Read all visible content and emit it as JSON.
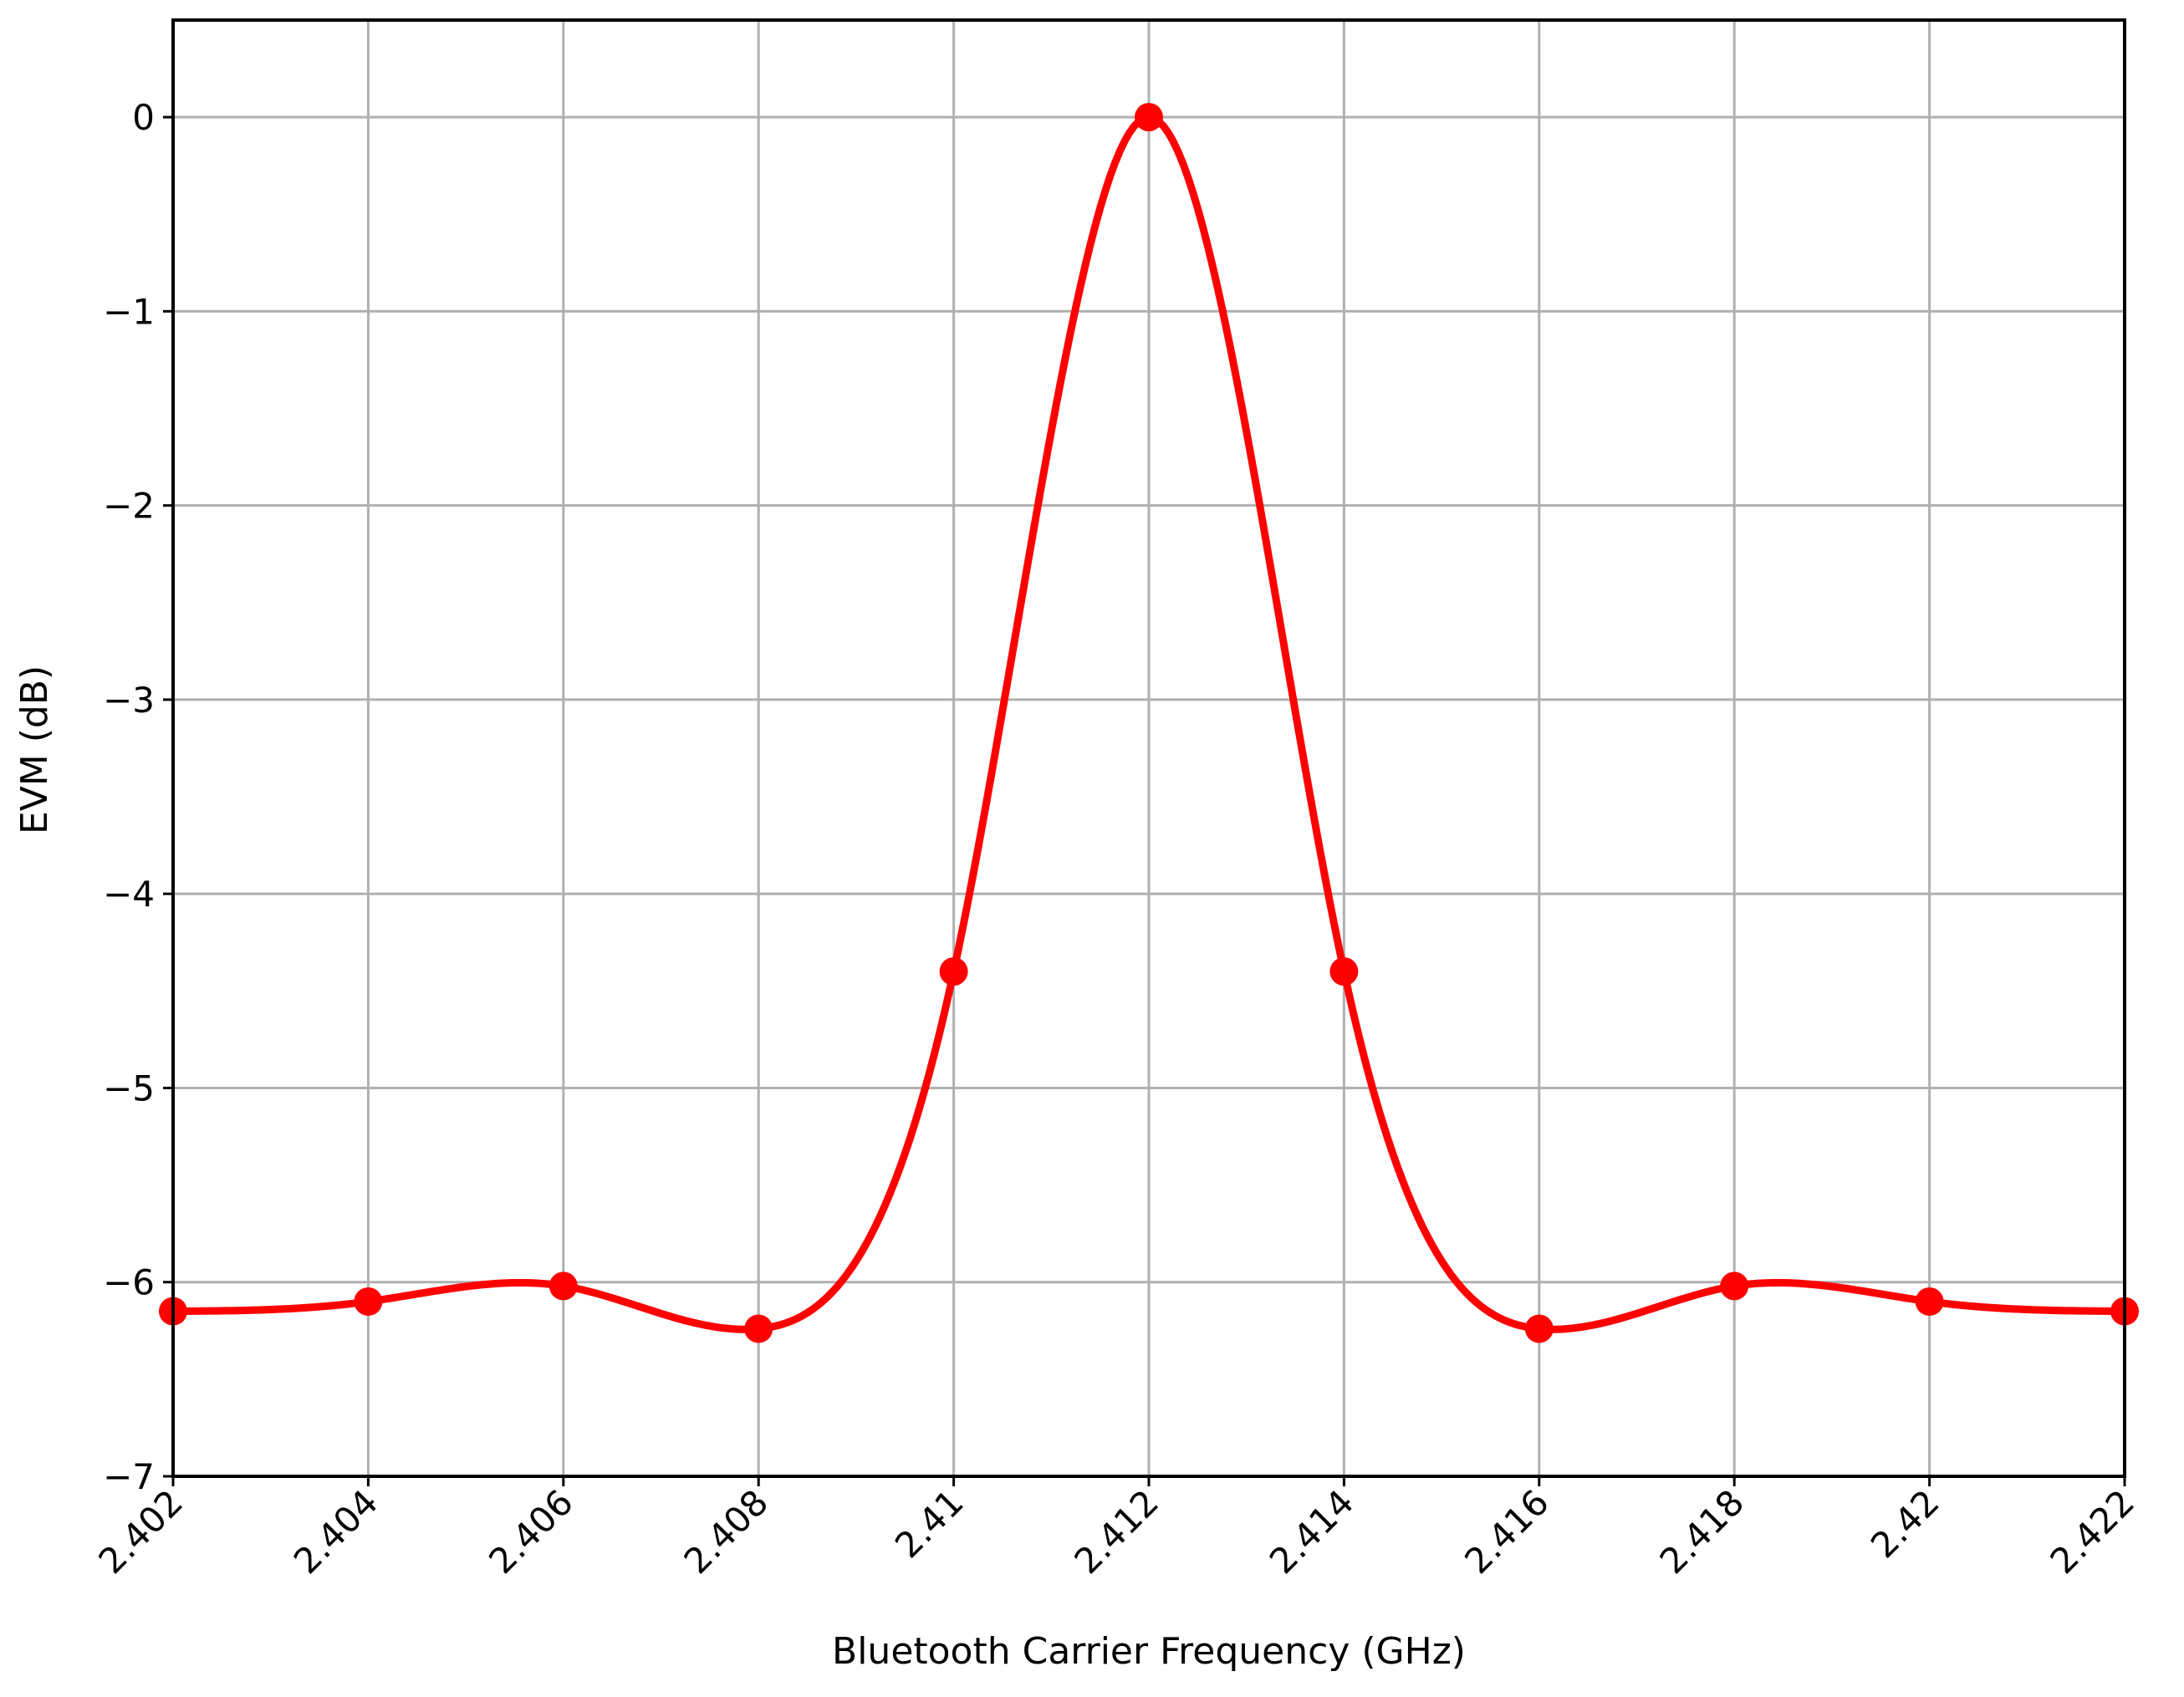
{
  "chart_data": {
    "type": "line",
    "xlabel": "Bluetooth Carrier Frequency (GHz)",
    "ylabel": "EVM (dB)",
    "xlim": [
      2.402,
      2.422
    ],
    "ylim": [
      -7,
      0.5
    ],
    "x_ticks": [
      2.402,
      2.404,
      2.406,
      2.408,
      2.41,
      2.412,
      2.414,
      2.416,
      2.418,
      2.42,
      2.422
    ],
    "x_tick_labels": [
      "2.402",
      "2.404",
      "2.406",
      "2.408",
      "2.41",
      "2.412",
      "2.414",
      "2.416",
      "2.418",
      "2.42",
      "2.422"
    ],
    "y_ticks": [
      0,
      -1,
      -2,
      -3,
      -4,
      -5,
      -6,
      -7
    ],
    "y_tick_labels": [
      "0",
      "−1",
      "−2",
      "−3",
      "−4",
      "−5",
      "−6",
      "−7"
    ],
    "grid": true,
    "series": [
      {
        "color": "#ff0000",
        "x": [
          2.402,
          2.404,
          2.406,
          2.408,
          2.41,
          2.412,
          2.414,
          2.416,
          2.418,
          2.42,
          2.422
        ],
        "y": [
          -6.15,
          -6.1,
          -6.02,
          -6.24,
          -4.4,
          0.0,
          -4.4,
          -6.24,
          -6.02,
          -6.1,
          -6.15
        ],
        "markers": true
      }
    ]
  }
}
